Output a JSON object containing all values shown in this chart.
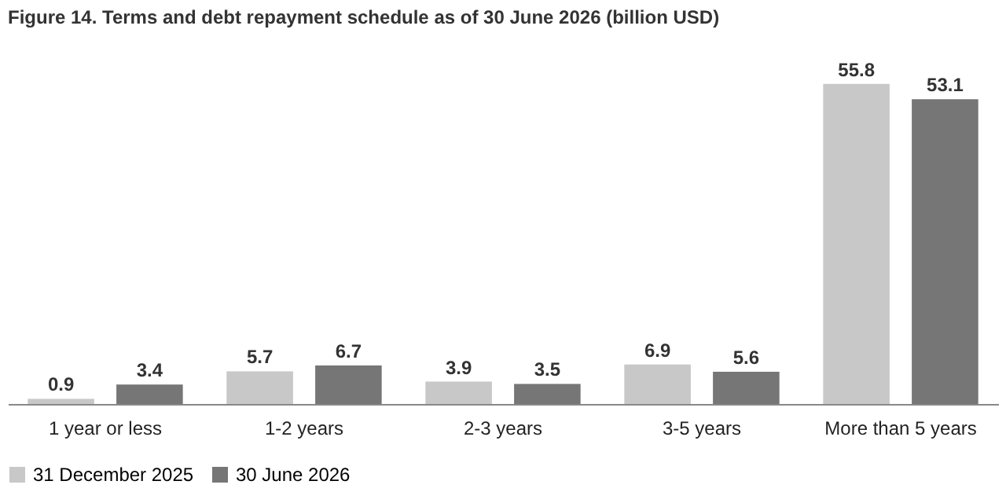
{
  "chart_data": {
    "type": "bar",
    "title": "Figure 14. Terms and debt repayment schedule as of 30 June 2026 (billion USD)",
    "categories": [
      "1 year or less",
      "1-2 years",
      "2-3 years",
      "3-5 years",
      "More than 5 years"
    ],
    "series": [
      {
        "name": "31 December 2025",
        "color": "#c8c8c8",
        "values": [
          0.9,
          5.7,
          3.9,
          6.9,
          55.8
        ]
      },
      {
        "name": "30 June 2026",
        "color": "#767676",
        "values": [
          3.4,
          6.7,
          3.5,
          5.6,
          53.1
        ]
      }
    ],
    "data_labels": true,
    "legend": "bottom",
    "grid": false,
    "tick_labels": "x"
  }
}
